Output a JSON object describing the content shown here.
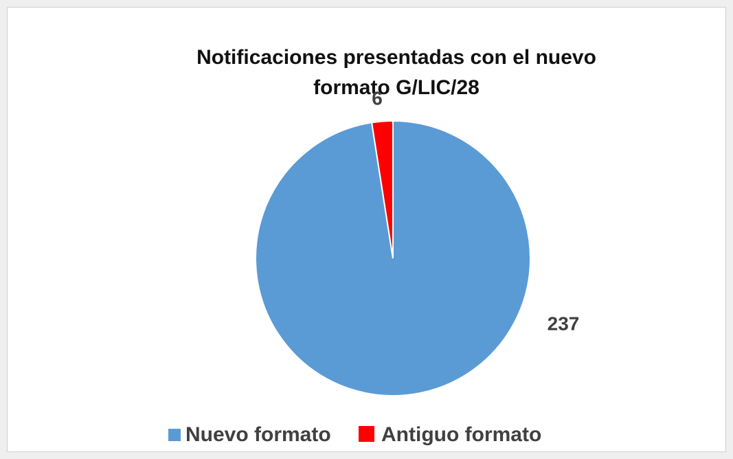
{
  "chart_data": {
    "type": "pie",
    "title": [
      "Notificaciones presentadas con el nuevo",
      "formato  G/LIC/28"
    ],
    "categories": [
      "Nuevo formato",
      "Antiguo formato"
    ],
    "values": [
      237,
      6
    ],
    "colors": [
      "#5b9bd5",
      "#ff0000"
    ],
    "legend": "bottom"
  }
}
